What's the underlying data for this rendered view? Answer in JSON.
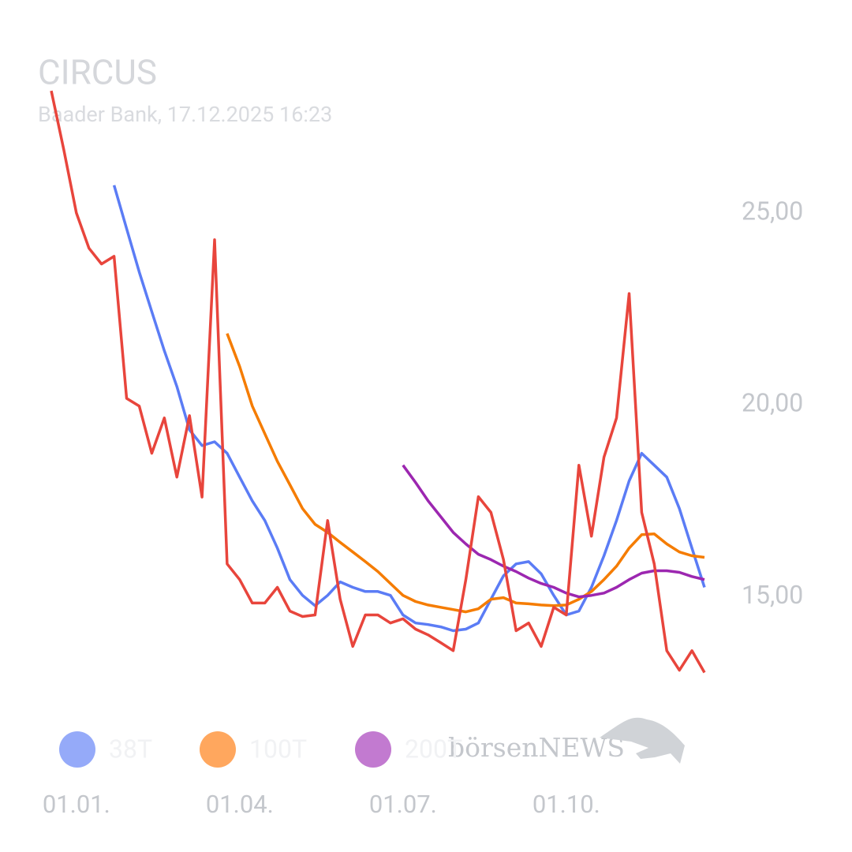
{
  "chart_data": {
    "type": "line",
    "title": "CIRCUS",
    "subtitle": "Baader Bank, 17.12.2025 16:23",
    "watermark": "börsenNEWS",
    "categories": [
      null,
      null,
      "01.01.",
      null,
      null,
      null,
      null,
      null,
      null,
      null,
      null,
      null,
      null,
      null,
      null,
      "01.04.",
      null,
      null,
      null,
      null,
      null,
      null,
      null,
      null,
      null,
      null,
      null,
      null,
      "01.07.",
      null,
      null,
      null,
      null,
      null,
      null,
      null,
      null,
      null,
      null,
      null,
      null,
      "01.10.",
      null,
      null,
      null,
      null,
      null,
      null,
      null,
      null,
      null,
      null,
      null
    ],
    "series": [
      {
        "color": "#e8453c",
        "values": [
          28.18,
          26.64,
          25.0,
          24.08,
          23.67,
          23.87,
          20.17,
          19.97,
          18.74,
          19.66,
          18.12,
          19.72,
          17.6,
          24.3,
          15.86,
          15.45,
          14.84,
          14.84,
          15.25,
          14.63,
          14.49,
          14.53,
          16.99,
          14.94,
          13.71,
          14.53,
          14.53,
          14.32,
          14.43,
          14.16,
          14.01,
          13.81,
          13.6,
          15.45,
          17.61,
          17.2,
          15.97,
          14.12,
          14.32,
          13.71,
          14.73,
          14.53,
          18.43,
          16.58,
          18.64,
          19.66,
          22.9,
          17.2,
          15.86,
          13.6,
          13.09,
          13.6,
          13.03
        ]
      },
      {
        "name": "38T",
        "color": "#5b7cf5",
        "legend_color": "#95aaf9",
        "values": [
          null,
          null,
          null,
          null,
          null,
          25.72,
          24.59,
          23.46,
          22.43,
          21.41,
          20.48,
          19.35,
          18.94,
          19.04,
          18.74,
          18.12,
          17.5,
          16.99,
          16.27,
          15.45,
          15.04,
          14.77,
          15.04,
          15.39,
          15.25,
          15.14,
          15.14,
          15.04,
          14.53,
          14.32,
          14.28,
          14.22,
          14.12,
          14.16,
          14.32,
          14.94,
          15.55,
          15.86,
          15.92,
          15.6,
          15.04,
          14.53,
          14.63,
          15.25,
          16.07,
          16.99,
          18.02,
          18.74,
          18.43,
          18.12,
          17.3,
          16.27,
          15.25
        ]
      },
      {
        "name": "100T",
        "color": "#f57c00",
        "legend_color": "#ffa75e",
        "values": [
          null,
          null,
          null,
          null,
          null,
          null,
          null,
          null,
          null,
          null,
          null,
          null,
          null,
          null,
          21.86,
          21.0,
          19.97,
          19.25,
          18.53,
          17.92,
          17.3,
          16.89,
          16.68,
          16.42,
          16.17,
          15.92,
          15.66,
          15.35,
          15.04,
          14.88,
          14.79,
          14.73,
          14.67,
          14.61,
          14.69,
          14.94,
          14.98,
          14.84,
          14.82,
          14.79,
          14.77,
          14.79,
          14.94,
          15.14,
          15.45,
          15.8,
          16.27,
          16.62,
          16.64,
          16.38,
          16.17,
          16.07,
          16.03
        ]
      },
      {
        "name": "200T",
        "color": "#9c27b0",
        "legend_color": "#c27ad0",
        "values": [
          null,
          null,
          null,
          null,
          null,
          null,
          null,
          null,
          null,
          null,
          null,
          null,
          null,
          null,
          null,
          null,
          null,
          null,
          null,
          null,
          null,
          null,
          null,
          null,
          null,
          null,
          null,
          null,
          18.43,
          17.98,
          17.5,
          17.09,
          16.68,
          16.38,
          16.11,
          15.97,
          15.8,
          15.66,
          15.49,
          15.35,
          15.25,
          15.1,
          15.0,
          15.04,
          15.1,
          15.25,
          15.45,
          15.62,
          15.68,
          15.68,
          15.64,
          15.53,
          15.45
        ]
      }
    ],
    "ylim": [
      11.5,
      28.5
    ],
    "yticks": [
      {
        "value": 15,
        "label": "15,00"
      },
      {
        "value": 20,
        "label": "20,00"
      },
      {
        "value": 25,
        "label": "25,00"
      }
    ],
    "grid": false
  }
}
